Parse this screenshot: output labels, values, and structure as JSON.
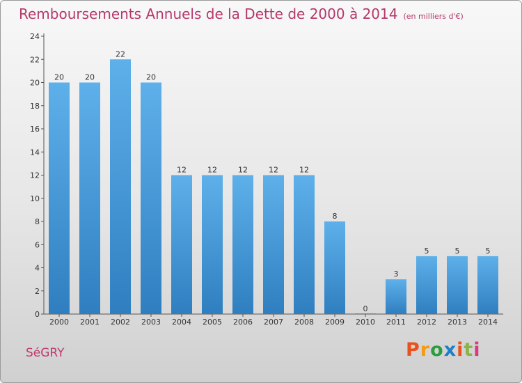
{
  "header": {
    "title": "Remboursements Annuels de la Dette de 2000 à 2014",
    "subtitle": "(en milliers d'€)"
  },
  "footer": {
    "commune": "SéGRY",
    "logo": "Proxiti",
    "logo_colors": [
      "#e8511d",
      "#f39c12",
      "#2a9d3c",
      "#1e7fc9",
      "#e8511d",
      "#8ab34a",
      "#d83a7c"
    ]
  },
  "colors": {
    "bar_light": "#5eb0ea",
    "bar_dark": "#2f7fc0",
    "accent": "#b5386b"
  },
  "chart_data": {
    "type": "bar",
    "title": "Remboursements Annuels de la Dette de 2000 à 2014",
    "subtitle": "(en milliers d'€)",
    "categories": [
      "2000",
      "2001",
      "2002",
      "2003",
      "2004",
      "2005",
      "2006",
      "2007",
      "2008",
      "2009",
      "2010",
      "2011",
      "2012",
      "2013",
      "2014"
    ],
    "values": [
      20,
      20,
      22,
      20,
      12,
      12,
      12,
      12,
      12,
      8,
      0,
      3,
      5,
      5,
      5
    ],
    "xlabel": "",
    "ylabel": "",
    "ylim": [
      0,
      24
    ],
    "yticks": [
      0,
      2,
      4,
      6,
      8,
      10,
      12,
      14,
      16,
      18,
      20,
      22,
      24
    ],
    "grid": false,
    "legend": "none"
  }
}
